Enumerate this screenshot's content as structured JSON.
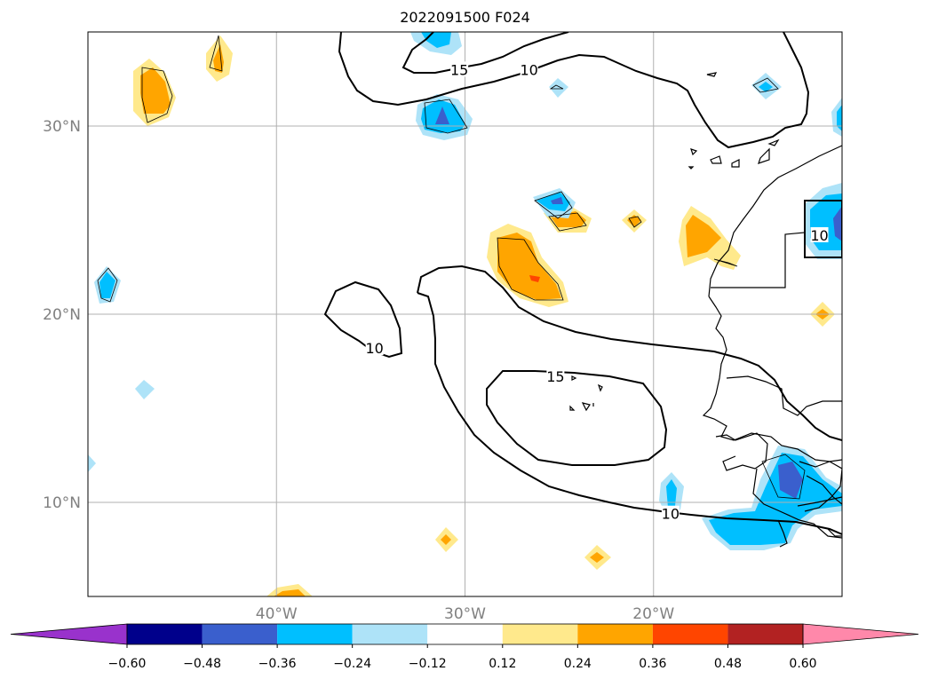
{
  "title": "2022091500 F024",
  "map": {
    "lon_range": [
      -50,
      -10
    ],
    "lat_range": [
      5,
      35
    ],
    "grid": true,
    "lon_ticks": [
      {
        "lon": -40,
        "label": "40°W"
      },
      {
        "lon": -30,
        "label": "30°W"
      },
      {
        "lon": -20,
        "label": "20°W"
      }
    ],
    "lat_ticks": [
      {
        "lat": 30,
        "label": "30°N"
      },
      {
        "lat": 20,
        "label": "20°N"
      },
      {
        "lat": 10,
        "label": "10°N"
      }
    ],
    "contour_labels": [
      {
        "text": "15",
        "lon": -30.3,
        "lat": 33.0
      },
      {
        "text": "10",
        "lon": -26.6,
        "lat": 33.0
      },
      {
        "text": "10",
        "lon": -34.8,
        "lat": 18.2
      },
      {
        "text": "15",
        "lon": -25.2,
        "lat": 16.7
      },
      {
        "text": "10",
        "lon": -19.1,
        "lat": 9.4
      },
      {
        "text": "10",
        "lon": -11.2,
        "lat": 24.2
      }
    ]
  },
  "colorbar": {
    "ticks": [
      "−0.60",
      "−0.48",
      "−0.36",
      "−0.24",
      "−0.12",
      "0.12",
      "0.24",
      "0.36",
      "0.48",
      "0.60"
    ],
    "colors": [
      "#9932cc",
      "#00008b",
      "#3a5fcd",
      "#00bfff",
      "#aee3f8",
      "#ffffff",
      "#ffe98c",
      "#ffa500",
      "#ff4500",
      "#b22222",
      "#ff88aa"
    ],
    "extend": "both"
  },
  "colors": {
    "grid": "#b0b0b0",
    "tick_label": "#808080",
    "coast": "#000000"
  }
}
